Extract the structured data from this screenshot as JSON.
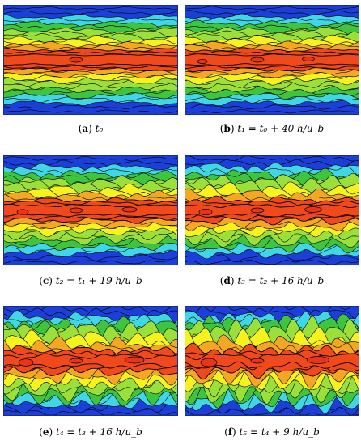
{
  "panels": [
    {
      "tag": "a",
      "caption": "t₀"
    },
    {
      "tag": "b",
      "caption": "t₁ = t₀ + 40 h/u_b"
    },
    {
      "tag": "c",
      "caption": "t₂ = t₁ + 19 h/u_b"
    },
    {
      "tag": "d",
      "caption": "t₃ = t₂ + 16 h/u_b"
    },
    {
      "tag": "e",
      "caption": "t₄ = t₃ + 16 h/u_b"
    },
    {
      "tag": "f",
      "caption": "t₅ = t₄ + 9 h/u_b"
    }
  ],
  "colors": {
    "wall": "#1b3fd8",
    "cyan": "#3fd6e6",
    "green": "#3ec43e",
    "lightgreen": "#9be03a",
    "yellow": "#f6f21e",
    "orange": "#f5a623",
    "core": "#f04a1c"
  }
}
